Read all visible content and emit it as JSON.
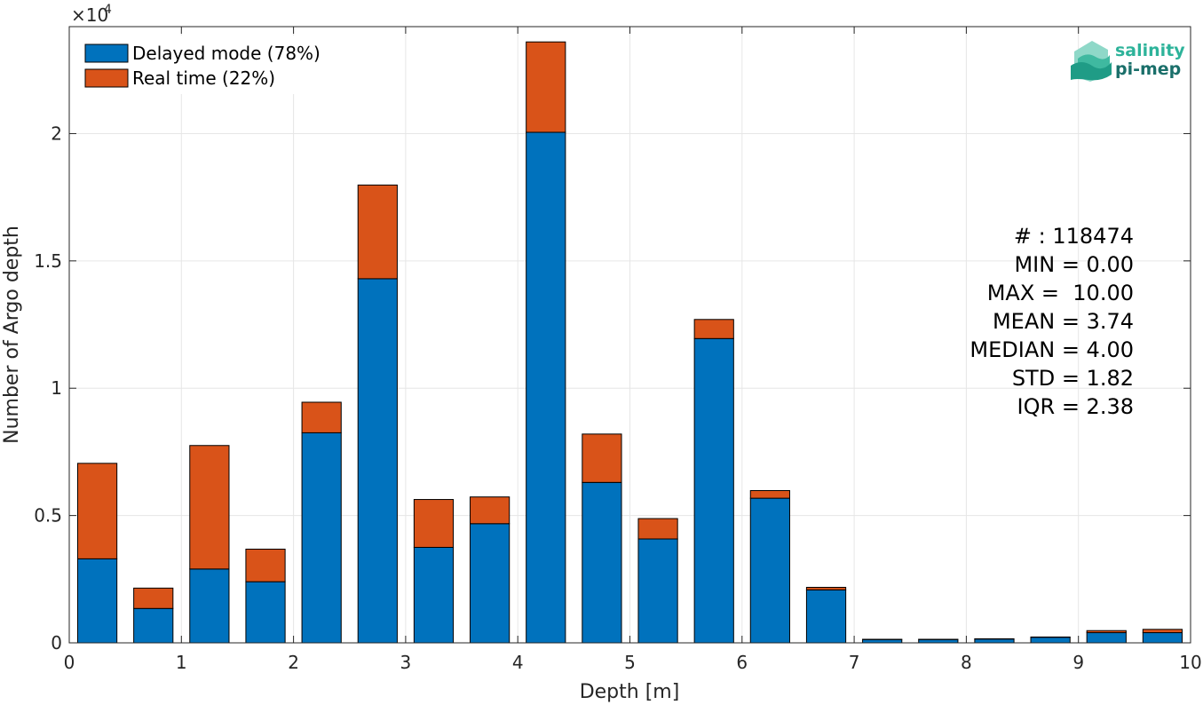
{
  "chart_data": {
    "type": "bar",
    "stacked": true,
    "xlabel": "Depth [m]",
    "ylabel": "Number of Argo depth",
    "y_exponent_label": "×10",
    "y_exponent_power": "4",
    "xlim": [
      0,
      10
    ],
    "ylim": [
      0,
      24200
    ],
    "x_ticks": [
      0,
      1,
      2,
      3,
      4,
      5,
      6,
      7,
      8,
      9,
      10
    ],
    "x_tick_labels": [
      "0",
      "1",
      "2",
      "3",
      "4",
      "5",
      "6",
      "7",
      "8",
      "9",
      "10"
    ],
    "y_ticks": [
      0,
      5000,
      10000,
      15000,
      20000
    ],
    "y_tick_labels": [
      "0",
      "0.5",
      "1",
      "1.5",
      "2"
    ],
    "grid": true,
    "legend_position": "top-left",
    "bin_width": 0.5,
    "bar_width": 0.35,
    "x": [
      0.25,
      0.75,
      1.25,
      1.75,
      2.25,
      2.75,
      3.25,
      3.75,
      4.25,
      4.75,
      5.25,
      5.75,
      6.25,
      6.75,
      7.25,
      7.75,
      8.25,
      8.75,
      9.25,
      9.75
    ],
    "series": [
      {
        "name": "Delayed mode (78%)",
        "color": "#0072BD",
        "values": [
          3300,
          1350,
          2900,
          2400,
          8250,
          14300,
          3750,
          4680,
          20050,
          6300,
          4080,
          11950,
          5680,
          2080,
          130,
          130,
          150,
          220,
          400,
          400
        ]
      },
      {
        "name": "Real time (22%)",
        "color": "#D95319",
        "values": [
          3750,
          800,
          4850,
          1280,
          1200,
          3680,
          1880,
          1050,
          3550,
          1900,
          800,
          750,
          300,
          100,
          10,
          10,
          10,
          10,
          80,
          130
        ]
      }
    ],
    "stats_lines": [
      "# : 118474",
      "MIN = 0.00",
      "MAX =  10.00",
      "MEAN = 3.74",
      "MEDIAN = 4.00",
      "STD = 1.82",
      "IQR = 2.38"
    ]
  },
  "logo": {
    "line1": "salinity",
    "line2": "pi-mep"
  }
}
